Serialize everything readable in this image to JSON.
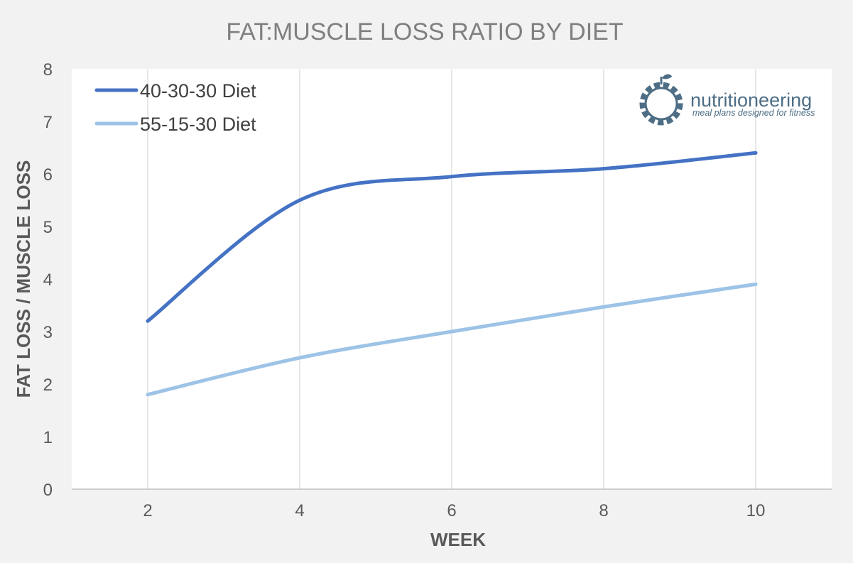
{
  "chart_data": {
    "type": "line",
    "title": "FAT:MUSCLE LOSS RATIO BY DIET",
    "xlabel": "WEEK",
    "ylabel": "FAT LOSS / MUSCLE LOSS",
    "x": [
      2,
      4,
      6,
      8,
      10
    ],
    "xlim": [
      1,
      11
    ],
    "ylim": [
      0,
      8
    ],
    "yticks": [
      0,
      1,
      2,
      3,
      4,
      5,
      6,
      7,
      8
    ],
    "xticks": [
      2,
      4,
      6,
      8,
      10
    ],
    "grid": "vertical",
    "legend_position": "top-left",
    "series": [
      {
        "name": "40-30-30 Diet",
        "values": [
          3.2,
          5.5,
          5.95,
          6.1,
          6.4
        ],
        "color": "#4472c4"
      },
      {
        "name": "55-15-30 Diet",
        "values": [
          1.8,
          2.5,
          3.0,
          3.47,
          3.9
        ],
        "color": "#9dc3e6"
      }
    ]
  },
  "brand": {
    "name": "nutritioneering",
    "tagline": "meal plans designed for fitness",
    "color": "#4e6e86",
    "icon": "gear-apple-icon"
  },
  "colors": {
    "background": "#f2f2f2",
    "plot_background": "#ffffff",
    "gridline": "#d9d9d9",
    "axis": "#bfbfbf"
  }
}
